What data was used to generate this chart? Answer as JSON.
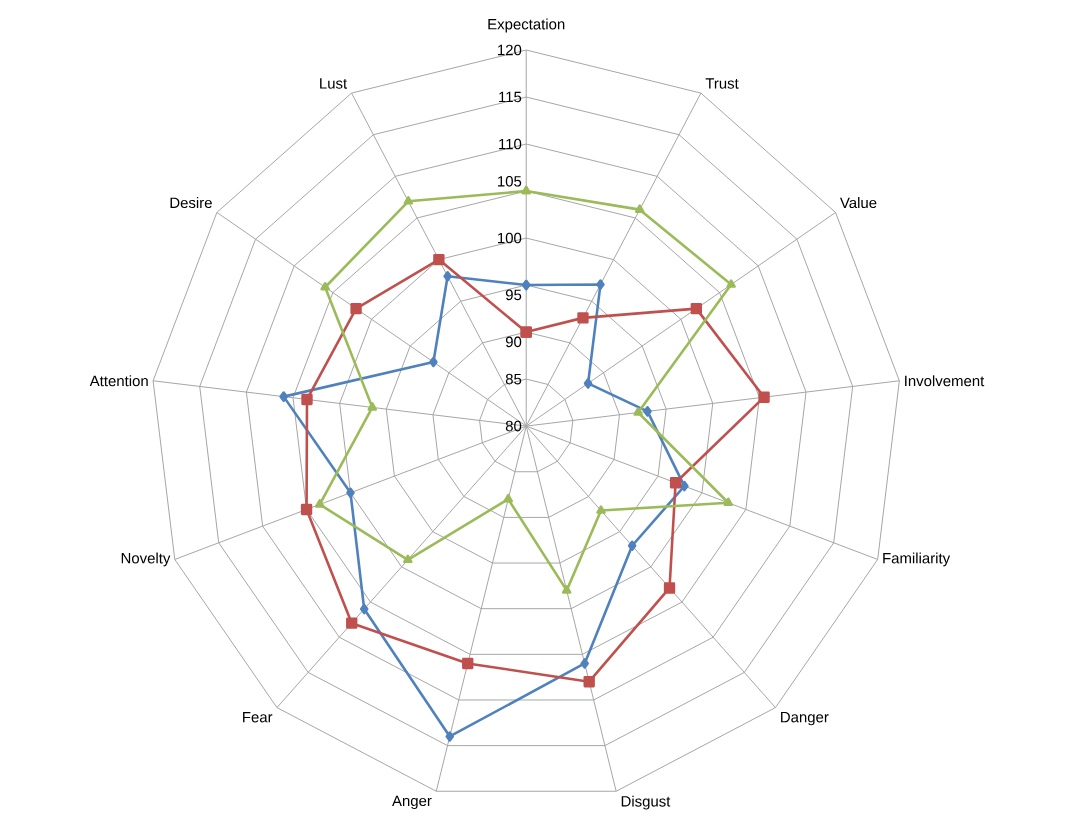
{
  "chart_data": {
    "type": "radar",
    "categories": [
      "Expectation",
      "Trust",
      "Value",
      "Involvement",
      "Familiarity",
      "Danger",
      "Disgust",
      "Anger",
      "Fear",
      "Novelty",
      "Attention",
      "Desire",
      "Lust"
    ],
    "ylim": [
      80,
      120
    ],
    "yticks": [
      80,
      85,
      90,
      95,
      100,
      105,
      110,
      115,
      120
    ],
    "grid": true,
    "series": [
      {
        "color": "#4f81bd",
        "marker": "diamond",
        "values": [
          95,
          97,
          88,
          93,
          98,
          97,
          106,
          114,
          106,
          100,
          106,
          92,
          98
        ]
      },
      {
        "color": "#c0504d",
        "marker": "square",
        "values": [
          90,
          93,
          102,
          105.5,
          97,
          103,
          108,
          106,
          108,
          105,
          103.5,
          102,
          100
        ]
      },
      {
        "color": "#9bbb59",
        "marker": "triangle",
        "values": [
          105,
          106,
          106.5,
          92,
          103,
          92,
          98,
          88,
          99,
          103.5,
          96.5,
          106,
          107
        ]
      }
    ]
  }
}
